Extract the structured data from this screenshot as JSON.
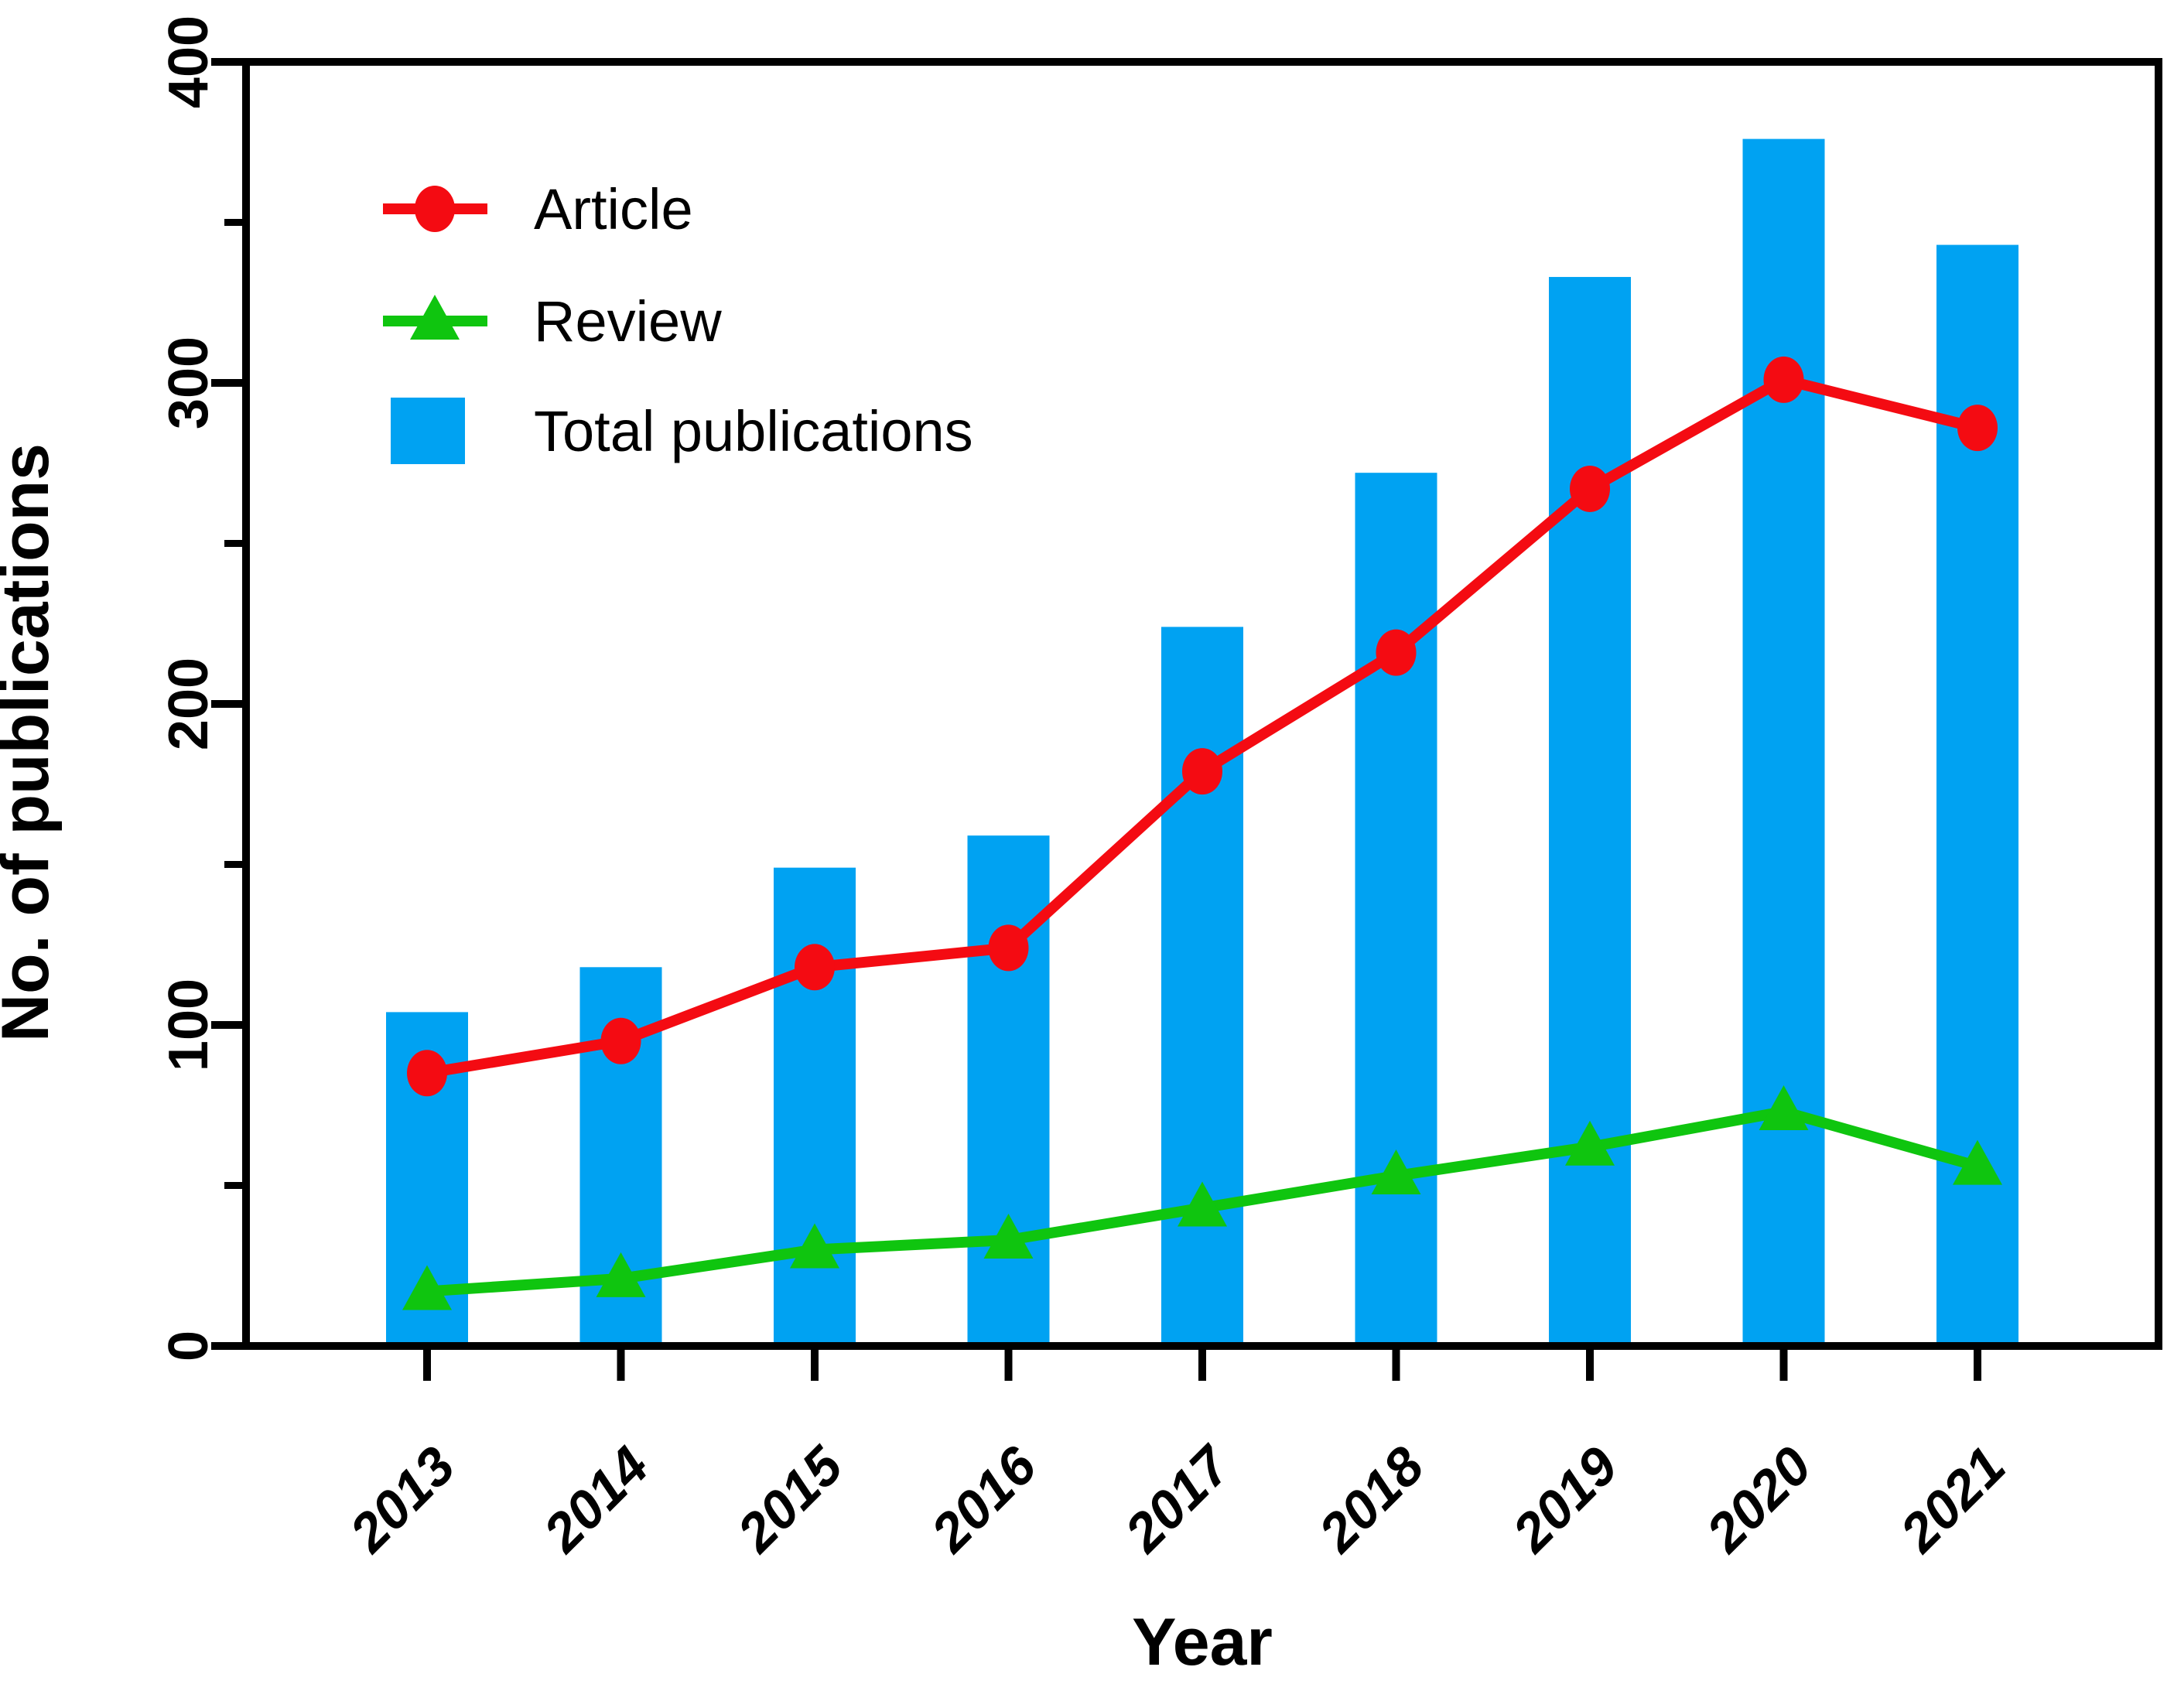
{
  "chart_data": {
    "type": "bar",
    "subtype": "bar-line-combo",
    "title": "",
    "xlabel": "Year",
    "ylabel": "No. of publications",
    "categories": [
      "2013",
      "2014",
      "2015",
      "2016",
      "2017",
      "2018",
      "2019",
      "2020",
      "2021"
    ],
    "series": [
      {
        "name": "Article",
        "type": "line",
        "marker": "circle",
        "color": "#f40b12",
        "values": [
          85,
          95,
          118,
          124,
          179,
          216,
          267,
          301,
          286
        ]
      },
      {
        "name": "Review",
        "type": "line",
        "marker": "triangle",
        "color": "#0fc50f",
        "values": [
          17,
          21,
          30,
          33,
          43,
          53,
          62,
          73,
          56
        ]
      },
      {
        "name": "Total publications",
        "type": "bar",
        "marker": "square",
        "color": "#00a2f2",
        "values": [
          104,
          118,
          149,
          159,
          224,
          272,
          333,
          376,
          343
        ]
      }
    ],
    "ylim": [
      0,
      400
    ],
    "yticks": [
      0,
      100,
      200,
      300,
      400
    ],
    "ytick_labels": [
      "0",
      "100",
      "200",
      "300",
      "400"
    ],
    "yticks_minor": [
      50,
      150,
      250,
      350
    ],
    "grid": false,
    "legend_position": "upper-left",
    "axis_color": "#000000",
    "background_color": "#ffffff"
  }
}
